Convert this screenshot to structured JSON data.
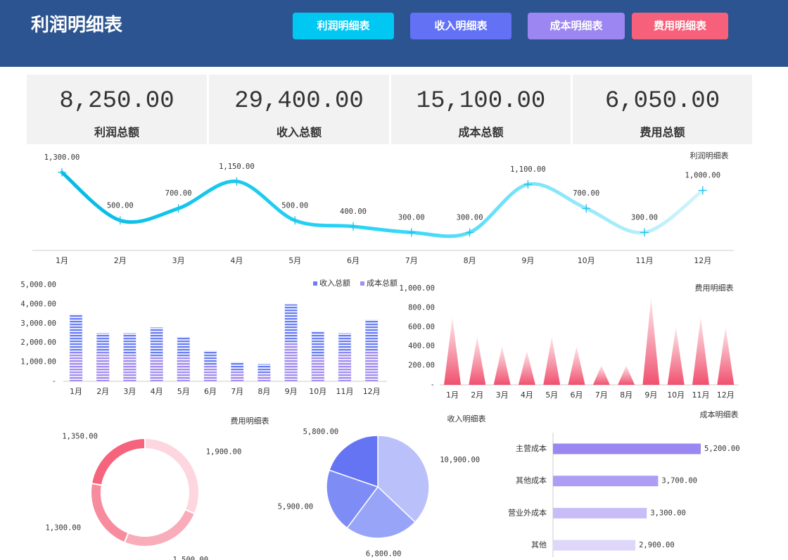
{
  "header": {
    "title": "利润明细表",
    "color": "#2c5490"
  },
  "buttons": [
    {
      "label": "利润明细表",
      "color": "#00c8f2"
    },
    {
      "label": "收入明细表",
      "color": "#6372f5"
    },
    {
      "label": "成本明细表",
      "color": "#9b86f2"
    },
    {
      "label": "费用明细表",
      "color": "#f6607a"
    }
  ],
  "kpis": [
    {
      "value": "8,250.00",
      "label": "利润总额",
      "color": "#1aa3e0"
    },
    {
      "value": "29,400.00",
      "label": "收入总额",
      "color": "#5b6ef0"
    },
    {
      "value": "15,100.00",
      "label": "成本总额",
      "color": "#9a85f2"
    },
    {
      "value": "6,050.00",
      "label": "费用总额",
      "color": "#f0506e"
    }
  ],
  "chart_data": [
    {
      "type": "line",
      "title": "利润明细表",
      "categories": [
        "1月",
        "2月",
        "3月",
        "4月",
        "5月",
        "6月",
        "7月",
        "8月",
        "9月",
        "10月",
        "11月",
        "12月"
      ],
      "values": [
        1300,
        500,
        700,
        1150,
        500,
        400,
        300,
        300,
        1100,
        700,
        300,
        1000
      ],
      "value_labels": [
        "1,300.00",
        "500.00",
        "700.00",
        "1,150.00",
        "500.00",
        "400.00",
        "300.00",
        "300.00",
        "1,100.00",
        "700.00",
        "300.00",
        "1,000.00"
      ],
      "gradient": [
        "#00b8e0",
        "#2fd6f8",
        "#e4f7fd"
      ],
      "marker_color": "#1cc4ea"
    },
    {
      "type": "bar",
      "categories": [
        "1月",
        "2月",
        "3月",
        "4月",
        "5月",
        "6月",
        "7月",
        "8月",
        "9月",
        "10月",
        "11月",
        "12月"
      ],
      "series": [
        {
          "name": "收入总额",
          "color": "#6a7ef2",
          "values": [
            3500,
            2500,
            2500,
            2800,
            2300,
            1600,
            1000,
            900,
            4000,
            2600,
            2500,
            3200
          ]
        },
        {
          "name": "成本总额",
          "color": "#a58ef0",
          "values": [
            1500,
            1500,
            1400,
            1300,
            1300,
            800,
            500,
            400,
            2000,
            1300,
            1500,
            1600
          ]
        }
      ],
      "ylim": [
        0,
        5000
      ],
      "yticks": [
        {
          "value": 0,
          "label": "-"
        },
        {
          "value": 1000,
          "label": "1,000.00"
        },
        {
          "value": 2000,
          "label": "2,000.00"
        },
        {
          "value": 3000,
          "label": "3,000.00"
        },
        {
          "value": 4000,
          "label": "4,000.00"
        },
        {
          "value": 5000,
          "label": "5,000.00"
        }
      ]
    },
    {
      "type": "bar",
      "shape": "triangle",
      "title": "费用明细表",
      "categories": [
        "1月",
        "2月",
        "3月",
        "4月",
        "5月",
        "6月",
        "7月",
        "8月",
        "9月",
        "10月",
        "11月",
        "12月"
      ],
      "values": [
        700,
        500,
        400,
        350,
        500,
        400,
        200,
        200,
        900,
        600,
        700,
        600
      ],
      "color": "#f0506e",
      "ylim": [
        0,
        1000
      ],
      "yticks": [
        {
          "value": 0,
          "label": "-"
        },
        {
          "value": 200,
          "label": "200.00"
        },
        {
          "value": 400,
          "label": "400.00"
        },
        {
          "value": 600,
          "label": "600.00"
        },
        {
          "value": 800,
          "label": "800.00"
        },
        {
          "value": 1000,
          "label": "1,000.00"
        }
      ]
    },
    {
      "type": "pie",
      "hole": true,
      "title": "费用明细表",
      "values": [
        1900,
        1500,
        1300,
        1350
      ],
      "value_labels": [
        "1,900.00",
        "1,500.00",
        "1,300.00",
        "1,350.00"
      ],
      "colors": [
        "#fdd6df",
        "#f9acba",
        "#f78c9f",
        "#f5647c"
      ]
    },
    {
      "type": "pie",
      "hole": false,
      "title": "收入明细表",
      "values": [
        10900,
        6800,
        5900,
        5800
      ],
      "value_labels": [
        "10,900.00",
        "6,800.00",
        "5,900.00",
        "5,800.00"
      ],
      "colors": [
        "#bac1fa",
        "#98a4f8",
        "#7e8cf6",
        "#6474f3"
      ]
    },
    {
      "type": "bar",
      "orientation": "horizontal",
      "title": "成本明细表",
      "categories": [
        "主营成本",
        "其他成本",
        "营业外成本",
        "其他"
      ],
      "values": [
        5200,
        3700,
        3300,
        2900
      ],
      "value_labels": [
        "5,200.00",
        "3,700.00",
        "3,300.00",
        "2,900.00"
      ],
      "colors": [
        "#9b87f2",
        "#ad9df4",
        "#c8bdf7",
        "#ded7fa"
      ]
    }
  ]
}
